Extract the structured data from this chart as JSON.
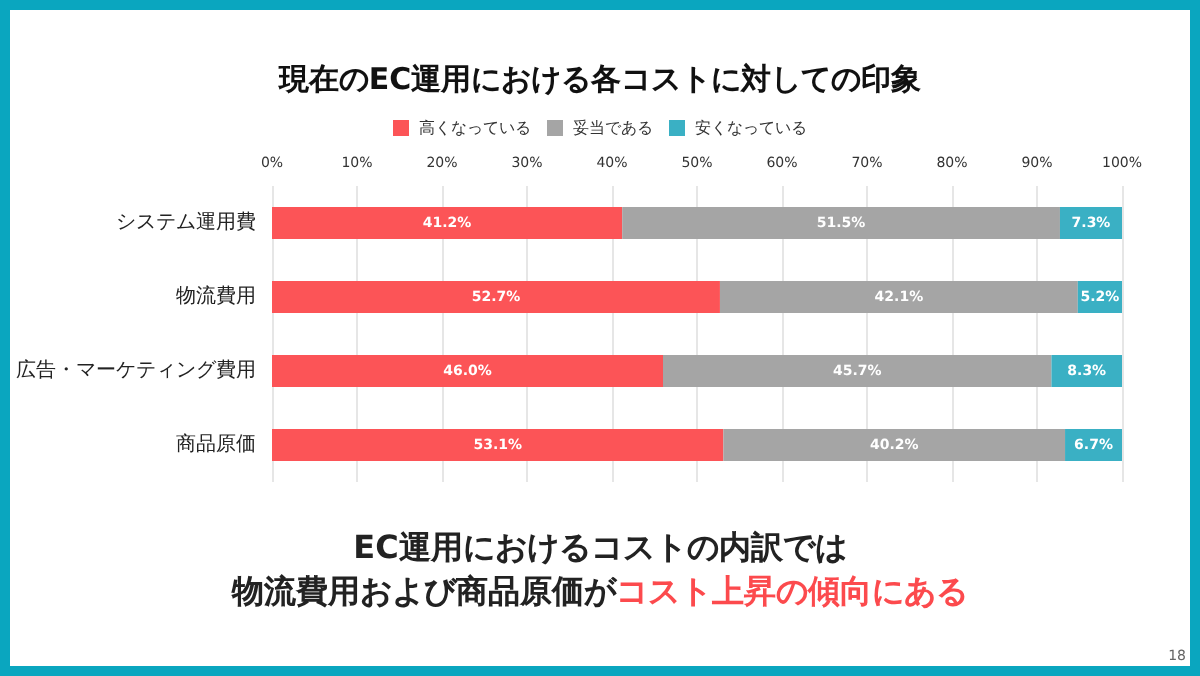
{
  "chart_data": {
    "type": "bar",
    "orientation": "horizontal",
    "stacked": true,
    "title": "現在のEC運用における各コストに対しての印象",
    "categories": [
      "システム運用費",
      "物流費用",
      "広告・マーケティング費用",
      "商品原価"
    ],
    "series": [
      {
        "name": "高くなっている",
        "color": "#fc5457",
        "values": [
          41.2,
          52.7,
          46.0,
          53.1
        ],
        "value_labels": [
          "41.2%",
          "52.7%",
          "46.0%",
          "53.1%"
        ]
      },
      {
        "name": "妥当である",
        "color": "#a5a5a5",
        "values": [
          51.5,
          42.1,
          45.7,
          40.2
        ],
        "value_labels": [
          "51.5%",
          "42.1%",
          "45.7%",
          "40.2%"
        ]
      },
      {
        "name": "安くなっている",
        "color": "#3ab0c4",
        "values": [
          7.3,
          5.2,
          8.3,
          6.7
        ],
        "value_labels": [
          "7.3%",
          "5.2%",
          "8.3%",
          "6.7%"
        ]
      }
    ],
    "xlim": [
      0,
      100
    ],
    "xticks": [
      {
        "value": 0,
        "label": "0%"
      },
      {
        "value": 10,
        "label": "10%"
      },
      {
        "value": 20,
        "label": "20%"
      },
      {
        "value": 30,
        "label": "30%"
      },
      {
        "value": 40,
        "label": "40%"
      },
      {
        "value": 50,
        "label": "50%"
      },
      {
        "value": 60,
        "label": "60%"
      },
      {
        "value": 70,
        "label": "70%"
      },
      {
        "value": 80,
        "label": "80%"
      },
      {
        "value": 90,
        "label": "90%"
      },
      {
        "value": 100,
        "label": "100%"
      }
    ],
    "grid": "x",
    "legend": "top",
    "annotations": [
      "EC運用におけるコストの内訳では",
      "物流費用および商品原価が",
      "コスト上昇の傾向にある",
      "18"
    ]
  }
}
